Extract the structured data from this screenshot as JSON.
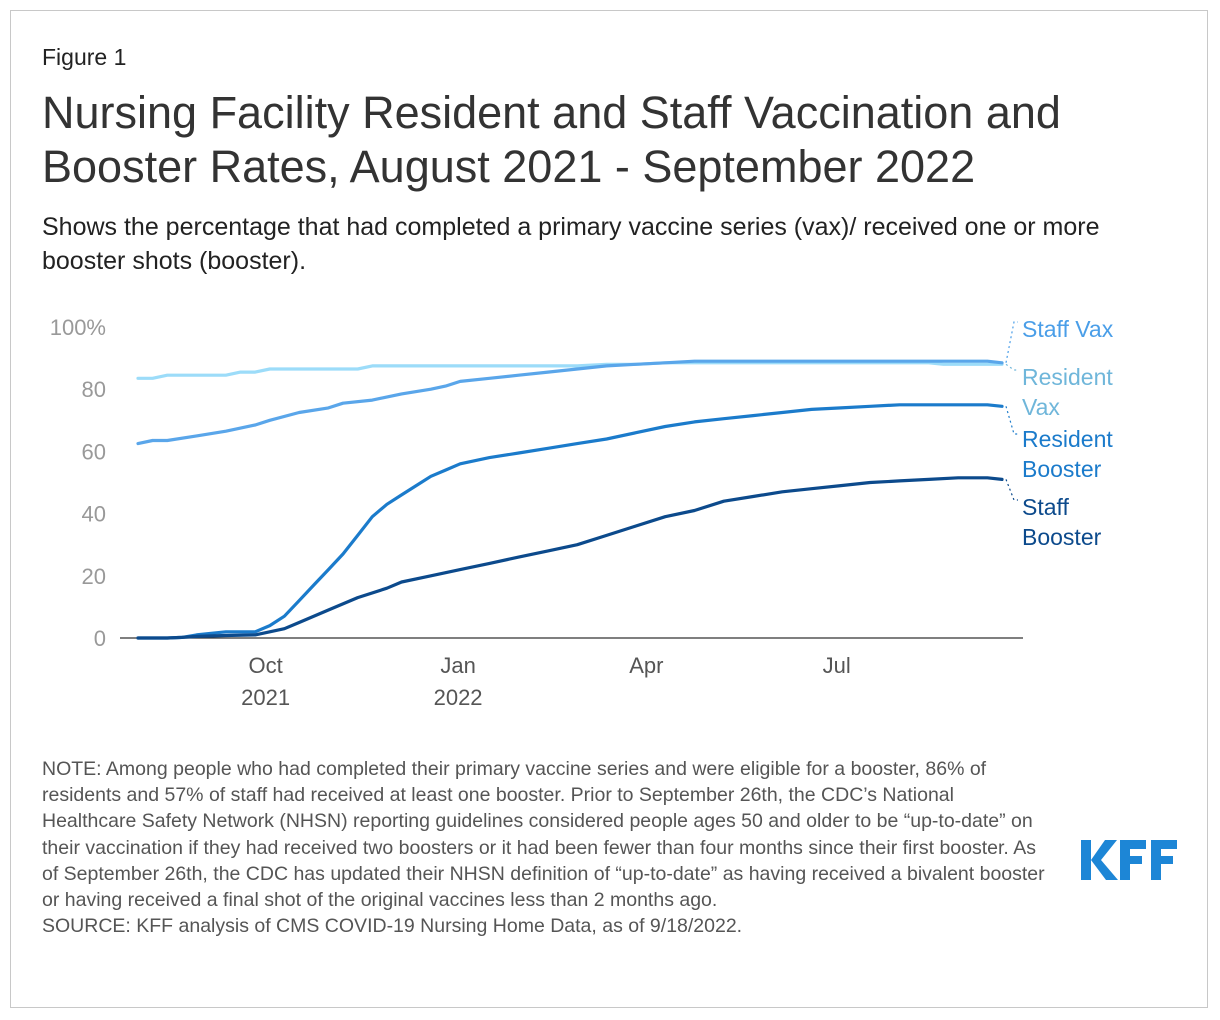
{
  "figure_label": "Figure 1",
  "title": "Nursing Facility Resident and Staff Vaccination and Booster Rates, August 2021 - September 2022",
  "subtitle": "Shows the percentage that had completed a primary vaccine series (vax)/ received one or more booster shots (booster).",
  "note": "NOTE: Among people who had completed their primary vaccine series and were eligible for a booster, 86% of residents and 57% of staff had received at least one booster. Prior to September 26th, the CDC’s National Healthcare Safety Network (NHSN) reporting guidelines considered people ages 50 and older to be “up-to-date” on their vaccination if they had received two boosters or it had been fewer than four months since their first booster. As of September 26th, the CDC has updated their NHSN definition of “up-to-date” as having received a bivalent booster or having received a final shot of the original vaccines less than 2 months ago.",
  "source": "SOURCE: KFF analysis of CMS COVID-19 Nursing Home Data, as of 9/18/2022.",
  "logo_text": "KFF",
  "colors": {
    "resident_vax": "#9cdcf9",
    "staff_vax": "#5aa6ea",
    "resident_booster": "#1b7bcb",
    "staff_booster": "#0c4a8c",
    "resident_vax_label": "#6fb6da",
    "staff_vax_label": "#4a9ee8",
    "logo": "#1d86d6"
  },
  "chart_data": {
    "type": "line",
    "ylim": [
      0,
      100
    ],
    "y_ticks": [
      0,
      20,
      40,
      60,
      80,
      100
    ],
    "y_tick_labels": [
      "0",
      "20",
      "40",
      "60",
      "80",
      "100%"
    ],
    "x_range": [
      "2021-08-01",
      "2022-09-18"
    ],
    "x_ticks": [
      {
        "date": "2021-10-01",
        "label": [
          "Oct",
          "2021"
        ]
      },
      {
        "date": "2022-01-01",
        "label": [
          "Jan",
          "2022"
        ]
      },
      {
        "date": "2022-04-01",
        "label": [
          "Apr"
        ]
      },
      {
        "date": "2022-07-01",
        "label": [
          "Jul"
        ]
      }
    ],
    "series": [
      {
        "name": "Resident Vax",
        "label_lines": [
          "Resident",
          "Vax"
        ],
        "x": [
          "2021-08-01",
          "2021-08-08",
          "2021-08-15",
          "2021-08-29",
          "2021-09-12",
          "2021-09-19",
          "2021-09-26",
          "2021-10-03",
          "2021-10-17",
          "2021-10-31",
          "2021-11-14",
          "2021-11-21",
          "2021-12-05",
          "2021-12-19",
          "2022-01-02",
          "2022-01-16",
          "2022-01-30",
          "2022-02-13",
          "2022-02-27",
          "2022-03-13",
          "2022-03-27",
          "2022-04-10",
          "2022-04-24",
          "2022-05-08",
          "2022-05-22",
          "2022-06-05",
          "2022-06-19",
          "2022-07-03",
          "2022-07-17",
          "2022-07-31",
          "2022-08-14",
          "2022-08-21",
          "2022-08-28",
          "2022-09-04",
          "2022-09-11",
          "2022-09-18"
        ],
        "y": [
          83.5,
          83.5,
          84.5,
          84.5,
          84.5,
          85.5,
          85.5,
          86.5,
          86.5,
          86.5,
          86.5,
          87.5,
          87.5,
          87.5,
          87.5,
          87.5,
          87.5,
          87.5,
          87.5,
          88,
          88,
          88.5,
          88.5,
          88.5,
          88.5,
          88.5,
          88.5,
          88.5,
          88.5,
          88.5,
          88.5,
          88,
          88,
          88,
          88,
          88
        ]
      },
      {
        "name": "Staff Vax",
        "label_lines": [
          "Staff Vax"
        ],
        "x": [
          "2021-08-01",
          "2021-08-08",
          "2021-08-15",
          "2021-08-29",
          "2021-09-12",
          "2021-09-26",
          "2021-10-03",
          "2021-10-17",
          "2021-10-31",
          "2021-11-07",
          "2021-11-21",
          "2021-12-05",
          "2021-12-19",
          "2021-12-26",
          "2022-01-02",
          "2022-01-16",
          "2022-01-30",
          "2022-02-13",
          "2022-02-27",
          "2022-03-13",
          "2022-03-27",
          "2022-04-10",
          "2022-04-24",
          "2022-05-08",
          "2022-05-22",
          "2022-06-05",
          "2022-06-19",
          "2022-07-03",
          "2022-07-17",
          "2022-07-31",
          "2022-08-14",
          "2022-08-28",
          "2022-09-04",
          "2022-09-11",
          "2022-09-18"
        ],
        "y": [
          62.5,
          63.5,
          63.5,
          65,
          66.5,
          68.5,
          70,
          72.5,
          74,
          75.5,
          76.5,
          78.5,
          80,
          81,
          82.5,
          83.5,
          84.5,
          85.5,
          86.5,
          87.5,
          88,
          88.5,
          89,
          89,
          89,
          89,
          89,
          89,
          89,
          89,
          89,
          89,
          89,
          89,
          88.5
        ]
      },
      {
        "name": "Resident Booster",
        "label_lines": [
          "Resident",
          "Booster"
        ],
        "x": [
          "2021-08-01",
          "2021-08-15",
          "2021-08-22",
          "2021-08-29",
          "2021-09-05",
          "2021-09-12",
          "2021-09-19",
          "2021-09-26",
          "2021-10-03",
          "2021-10-10",
          "2021-10-17",
          "2021-10-24",
          "2021-10-31",
          "2021-11-07",
          "2021-11-14",
          "2021-11-21",
          "2021-11-28",
          "2021-12-05",
          "2021-12-12",
          "2021-12-19",
          "2021-12-26",
          "2022-01-02",
          "2022-01-16",
          "2022-01-30",
          "2022-02-13",
          "2022-02-27",
          "2022-03-13",
          "2022-03-27",
          "2022-04-10",
          "2022-04-24",
          "2022-05-08",
          "2022-05-22",
          "2022-06-05",
          "2022-06-19",
          "2022-07-03",
          "2022-07-17",
          "2022-07-31",
          "2022-08-14",
          "2022-08-28",
          "2022-09-11",
          "2022-09-18"
        ],
        "y": [
          0,
          0,
          0.2,
          1,
          1.5,
          2,
          2,
          2,
          4,
          7,
          12,
          17,
          22,
          27,
          33,
          39,
          43,
          46,
          49,
          52,
          54,
          56,
          58,
          59.5,
          61,
          62.5,
          64,
          66,
          68,
          69.5,
          70.5,
          71.5,
          72.5,
          73.5,
          74,
          74.5,
          75,
          75,
          75,
          75,
          74.5
        ]
      },
      {
        "name": "Staff Booster",
        "label_lines": [
          "Staff",
          "Booster"
        ],
        "x": [
          "2021-08-01",
          "2021-08-15",
          "2021-08-22",
          "2021-08-29",
          "2021-09-12",
          "2021-09-26",
          "2021-10-03",
          "2021-10-10",
          "2021-10-17",
          "2021-10-31",
          "2021-11-14",
          "2021-11-28",
          "2021-12-05",
          "2021-12-19",
          "2022-01-02",
          "2022-01-16",
          "2022-01-30",
          "2022-02-13",
          "2022-02-27",
          "2022-03-13",
          "2022-03-27",
          "2022-04-10",
          "2022-04-24",
          "2022-05-08",
          "2022-05-22",
          "2022-06-05",
          "2022-06-19",
          "2022-07-03",
          "2022-07-17",
          "2022-07-31",
          "2022-08-14",
          "2022-08-28",
          "2022-09-11",
          "2022-09-18"
        ],
        "y": [
          0,
          0,
          0.2,
          0.5,
          0.8,
          1,
          2,
          3,
          5,
          9,
          13,
          16,
          18,
          20,
          22,
          24,
          26,
          28,
          30,
          33,
          36,
          39,
          41,
          44,
          45.5,
          47,
          48,
          49,
          50,
          50.5,
          51,
          51.5,
          51.5,
          51
        ]
      }
    ]
  }
}
